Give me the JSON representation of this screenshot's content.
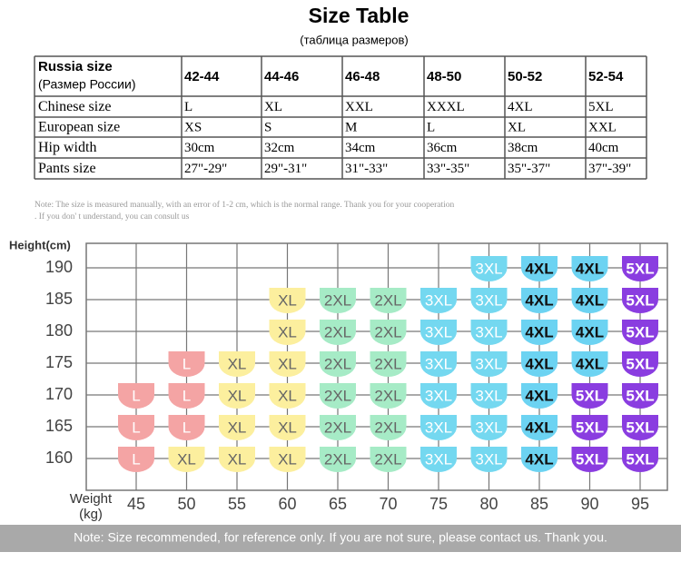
{
  "header": {
    "title": "Size Table",
    "subtitle": "(таблица размеров)"
  },
  "table": {
    "header": {
      "label": "Russia size",
      "sublabel": "(Размер России)",
      "sizes": [
        "42-44",
        "44-46",
        "46-48",
        "48-50",
        "50-52",
        "52-54"
      ]
    },
    "rows": [
      {
        "label": "Chinese size",
        "values": [
          "L",
          "XL",
          "XXL",
          "XXXL",
          "4XL",
          "5XL"
        ]
      },
      {
        "label": "European size",
        "values": [
          "XS",
          "S",
          "M",
          "L",
          "XL",
          "XXL"
        ]
      },
      {
        "label": "Hip width",
        "values": [
          "30cm",
          "32cm",
          "34cm",
          "36cm",
          "38cm",
          "40cm"
        ]
      },
      {
        "label": "Pants size",
        "values": [
          "27\"-29\"",
          "29\"-31\"",
          "31\"-33\"",
          "33\"-35\"",
          "35\"-37\"",
          "37\"-39\""
        ]
      }
    ]
  },
  "note": [
    "Note: The size is measured manually, with an error of 1-2 cm, which is the normal range. Thank you for your cooperation",
    ". If you don' t understand, you can consult us"
  ],
  "grid": {
    "y_title": "Height(cm)",
    "x_title": [
      "Weight",
      "(kg)"
    ],
    "heights": [
      190,
      185,
      180,
      175,
      170,
      165,
      160
    ],
    "weights": [
      45,
      50,
      55,
      60,
      65,
      70,
      75,
      80,
      85,
      90,
      95
    ],
    "cells": [
      [
        null,
        null,
        null,
        null,
        null,
        null,
        null,
        "3XL",
        "4XL",
        "4XL",
        "5XL"
      ],
      [
        null,
        null,
        null,
        "XL",
        "2XL",
        "2XL",
        "3XL",
        "3XL",
        "4XL",
        "4XL",
        "5XL"
      ],
      [
        null,
        null,
        null,
        "XL",
        "2XL",
        "2XL",
        "3XL",
        "3XL",
        "4XL",
        "4XL",
        "5XL"
      ],
      [
        null,
        "L",
        "XL",
        "XL",
        "2XL",
        "2XL",
        "3XL",
        "3XL",
        "4XL",
        "4XL",
        "5XL"
      ],
      [
        "L",
        "L",
        "XL",
        "XL",
        "2XL",
        "2XL",
        "3XL",
        "3XL",
        "4XL",
        "5XL",
        "5XL"
      ],
      [
        "L",
        "L",
        "XL",
        "XL",
        "2XL",
        "2XL",
        "3XL",
        "3XL",
        "4XL",
        "5XL",
        "5XL"
      ],
      [
        "L",
        "XL",
        "XL",
        "XL",
        "2XL",
        "2XL",
        "3XL",
        "3XL",
        "4XL",
        "5XL",
        "5XL"
      ]
    ],
    "badge_colors": {
      "L": {
        "fill": "#f4a4a4",
        "text": "#ffffff"
      },
      "XL": {
        "fill": "#fcef9e",
        "text": "#666666"
      },
      "2XL": {
        "fill": "#a6ebc6",
        "text": "#666666"
      },
      "3XL": {
        "fill": "#74d8f0",
        "text": "#ffffff"
      },
      "4XL": {
        "fill": "#6cd3f2",
        "text": "#111111"
      },
      "5XL": {
        "fill": "#8a3de0",
        "text": "#ffffff"
      }
    }
  },
  "footer": "Note: Size recommended, for reference only. If you are not sure, please contact us. Thank you."
}
